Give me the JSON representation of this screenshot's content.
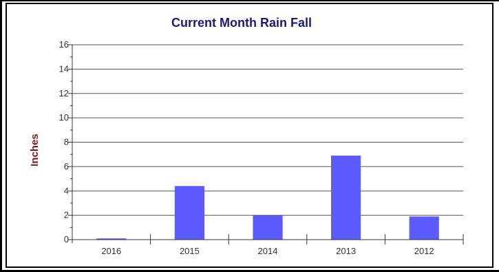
{
  "chart_data": {
    "type": "bar",
    "title": "Current Month Rain Fall",
    "xlabel": "",
    "ylabel": "Inches",
    "categories": [
      "2016",
      "2015",
      "2014",
      "2013",
      "2012"
    ],
    "values": [
      0.1,
      4.4,
      2.0,
      6.9,
      1.9
    ],
    "ylim": [
      0,
      16
    ],
    "yticks": [
      "0",
      "2",
      "4",
      "6",
      "8",
      "10",
      "12",
      "14",
      "16"
    ],
    "grid": true,
    "bar_color": "#5b5bff"
  }
}
